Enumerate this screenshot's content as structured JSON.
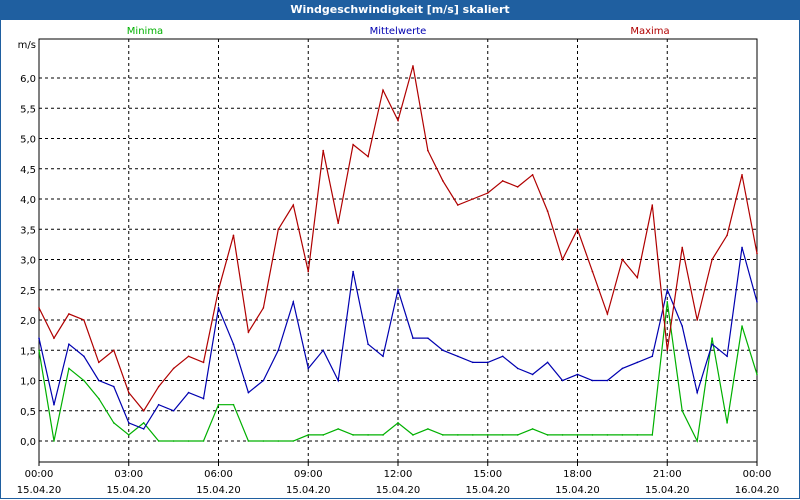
{
  "window": {
    "title": "Windgeschwindigkeit [m/s] skaliert"
  },
  "chart_data": {
    "type": "line",
    "title": "Windgeschwindigkeit [m/s] skaliert",
    "ylabel": "m/s",
    "ylim": [
      0,
      6.5
    ],
    "xlim": [
      0,
      24
    ],
    "grid": true,
    "y_ticks": [
      "0,0",
      "0,5",
      "1,0",
      "1,5",
      "2,0",
      "2,5",
      "3,0",
      "3,5",
      "4,0",
      "4,5",
      "5,0",
      "5,5",
      "6,0"
    ],
    "x_ticks": [
      {
        "time": "00:00",
        "date": "15.04.20"
      },
      {
        "time": "03:00",
        "date": "15.04.20"
      },
      {
        "time": "06:00",
        "date": "15.04.20"
      },
      {
        "time": "09:00",
        "date": "15.04.20"
      },
      {
        "time": "12:00",
        "date": "15.04.20"
      },
      {
        "time": "15:00",
        "date": "15.04.20"
      },
      {
        "time": "18:00",
        "date": "15.04.20"
      },
      {
        "time": "21:00",
        "date": "15.04.20"
      },
      {
        "time": "00:00",
        "date": "16.04.20"
      }
    ],
    "series": [
      {
        "name": "Minima",
        "color": "#00b000",
        "x": [
          0,
          0.5,
          1,
          1.5,
          2,
          2.5,
          3,
          3.5,
          4,
          4.5,
          5,
          5.5,
          6,
          6.5,
          7,
          7.5,
          8,
          8.5,
          9,
          9.5,
          10,
          10.5,
          11,
          11.5,
          12,
          12.5,
          13,
          13.5,
          14,
          14.5,
          15,
          15.5,
          16,
          16.5,
          17,
          17.5,
          18,
          18.5,
          19,
          19.5,
          20,
          20.5,
          21,
          21.5,
          22,
          22.5,
          23,
          23.5,
          24
        ],
        "values": [
          1.5,
          0.0,
          1.2,
          1.0,
          0.7,
          0.3,
          0.1,
          0.3,
          0.0,
          0.0,
          0.0,
          0.0,
          0.6,
          0.6,
          0.0,
          0.0,
          0.0,
          0.0,
          0.1,
          0.1,
          0.2,
          0.1,
          0.1,
          0.1,
          0.3,
          0.1,
          0.2,
          0.1,
          0.1,
          0.1,
          0.1,
          0.1,
          0.1,
          0.2,
          0.1,
          0.1,
          0.1,
          0.1,
          0.1,
          0.1,
          0.1,
          0.1,
          2.3,
          0.5,
          0.0,
          1.7,
          0.3,
          1.9,
          1.1
        ]
      },
      {
        "name": "Mittelwerte",
        "color": "#0000b0",
        "x": [
          0,
          0.5,
          1,
          1.5,
          2,
          2.5,
          3,
          3.5,
          4,
          4.5,
          5,
          5.5,
          6,
          6.5,
          7,
          7.5,
          8,
          8.5,
          9,
          9.5,
          10,
          10.5,
          11,
          11.5,
          12,
          12.5,
          13,
          13.5,
          14,
          14.5,
          15,
          15.5,
          16,
          16.5,
          17,
          17.5,
          18,
          18.5,
          19,
          19.5,
          20,
          20.5,
          21,
          21.5,
          22,
          22.5,
          23,
          23.5,
          24
        ],
        "values": [
          1.7,
          0.6,
          1.6,
          1.4,
          1.0,
          0.9,
          0.3,
          0.2,
          0.6,
          0.5,
          0.8,
          0.7,
          2.2,
          1.6,
          0.8,
          1.0,
          1.5,
          2.3,
          1.2,
          1.5,
          1.0,
          2.8,
          1.6,
          1.4,
          2.5,
          1.7,
          1.7,
          1.5,
          1.4,
          1.3,
          1.3,
          1.4,
          1.2,
          1.1,
          1.3,
          1.0,
          1.1,
          1.0,
          1.0,
          1.2,
          1.3,
          1.4,
          2.5,
          1.9,
          0.8,
          1.6,
          1.4,
          3.2,
          2.3
        ]
      },
      {
        "name": "Maxima",
        "color": "#b00000",
        "x": [
          0,
          0.5,
          1,
          1.5,
          2,
          2.5,
          3,
          3.5,
          4,
          4.5,
          5,
          5.5,
          6,
          6.5,
          7,
          7.5,
          8,
          8.5,
          9,
          9.5,
          10,
          10.5,
          11,
          11.5,
          12,
          12.5,
          13,
          13.5,
          14,
          14.5,
          15,
          15.5,
          16,
          16.5,
          17,
          17.5,
          18,
          18.5,
          19,
          19.5,
          20,
          20.5,
          21,
          21.5,
          22,
          22.5,
          23,
          23.5,
          24
        ],
        "values": [
          2.2,
          1.7,
          2.1,
          2.0,
          1.3,
          1.5,
          0.8,
          0.5,
          0.9,
          1.2,
          1.4,
          1.3,
          2.5,
          3.4,
          1.8,
          2.2,
          3.5,
          3.9,
          2.8,
          4.8,
          3.6,
          4.9,
          4.7,
          5.8,
          5.3,
          6.2,
          4.8,
          4.3,
          3.9,
          4.0,
          4.1,
          4.3,
          4.2,
          4.4,
          3.8,
          3.0,
          3.5,
          2.8,
          2.1,
          3.0,
          2.7,
          3.9,
          1.5,
          3.2,
          2.0,
          3.0,
          3.4,
          4.4,
          3.1
        ]
      }
    ]
  }
}
